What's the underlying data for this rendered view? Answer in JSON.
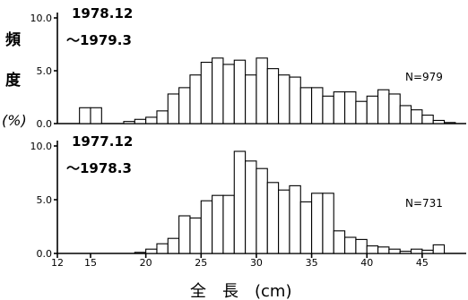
{
  "chart_data": [
    {
      "type": "bar",
      "period": [
        "1978.12",
        "～1979.3"
      ],
      "n_label": "N=979",
      "ylim": [
        0,
        10
      ],
      "yticks": [
        "10.0",
        "5.0",
        "0.0"
      ],
      "x": [
        12,
        13,
        14,
        15,
        16,
        17,
        18,
        19,
        20,
        21,
        22,
        23,
        24,
        25,
        26,
        27,
        28,
        29,
        30,
        31,
        32,
        33,
        34,
        35,
        36,
        37,
        38,
        39,
        40,
        41,
        42,
        43,
        44,
        45,
        46,
        47,
        48
      ],
      "values": [
        0,
        0,
        1.5,
        1.5,
        0,
        0,
        0.2,
        0.4,
        0.6,
        1.2,
        2.8,
        3.4,
        4.6,
        5.8,
        6.2,
        5.6,
        6.0,
        4.6,
        6.2,
        5.2,
        4.6,
        4.4,
        3.4,
        3.4,
        2.6,
        3.0,
        3.0,
        2.1,
        2.6,
        3.2,
        2.8,
        1.7,
        1.3,
        0.8,
        0.3,
        0.1,
        0
      ]
    },
    {
      "type": "bar",
      "period": [
        "1977.12",
        "～1978.3"
      ],
      "n_label": "N=731",
      "ylim": [
        0,
        10
      ],
      "yticks": [
        "10.0",
        "5.0",
        "0.0"
      ],
      "x": [
        12,
        13,
        14,
        15,
        16,
        17,
        18,
        19,
        20,
        21,
        22,
        23,
        24,
        25,
        26,
        27,
        28,
        29,
        30,
        31,
        32,
        33,
        34,
        35,
        36,
        37,
        38,
        39,
        40,
        41,
        42,
        43,
        44,
        45,
        46,
        47,
        48
      ],
      "values": [
        0,
        0,
        0,
        0,
        0,
        0,
        0,
        0.1,
        0.4,
        0.9,
        1.4,
        3.5,
        3.3,
        4.9,
        5.4,
        5.4,
        9.5,
        8.6,
        7.9,
        6.6,
        5.9,
        6.3,
        4.8,
        5.6,
        5.6,
        2.1,
        1.5,
        1.3,
        0.7,
        0.6,
        0.4,
        0.2,
        0.4,
        0.3,
        0.8,
        0,
        0
      ]
    }
  ],
  "x_ticks": [
    12,
    15,
    20,
    25,
    30,
    35,
    40,
    45
  ],
  "xlabel": "全　長　(cm)",
  "ylabel_chars": [
    "頻",
    "度"
  ],
  "ylabel_unit": "(%)"
}
